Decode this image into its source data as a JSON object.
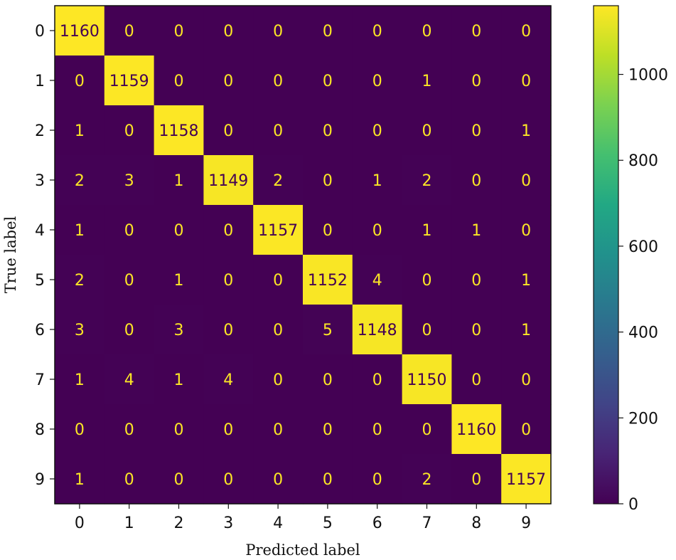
{
  "chart_data": {
    "type": "heatmap",
    "title": "",
    "xlabel": "Predicted label",
    "ylabel": "True label",
    "x_categories": [
      "0",
      "1",
      "2",
      "3",
      "4",
      "5",
      "6",
      "7",
      "8",
      "9"
    ],
    "y_categories": [
      "0",
      "1",
      "2",
      "3",
      "4",
      "5",
      "6",
      "7",
      "8",
      "9"
    ],
    "matrix": [
      [
        1160,
        0,
        0,
        0,
        0,
        0,
        0,
        0,
        0,
        0
      ],
      [
        0,
        1159,
        0,
        0,
        0,
        0,
        0,
        1,
        0,
        0
      ],
      [
        1,
        0,
        1158,
        0,
        0,
        0,
        0,
        0,
        0,
        1
      ],
      [
        2,
        3,
        1,
        1149,
        2,
        0,
        1,
        2,
        0,
        0
      ],
      [
        1,
        0,
        0,
        0,
        1157,
        0,
        0,
        1,
        1,
        0
      ],
      [
        2,
        0,
        1,
        0,
        0,
        1152,
        4,
        0,
        0,
        1
      ],
      [
        3,
        0,
        3,
        0,
        0,
        5,
        1148,
        0,
        0,
        1
      ],
      [
        1,
        4,
        1,
        4,
        0,
        0,
        0,
        1150,
        0,
        0
      ],
      [
        0,
        0,
        0,
        0,
        0,
        0,
        0,
        0,
        1160,
        0
      ],
      [
        1,
        0,
        0,
        0,
        0,
        0,
        0,
        2,
        0,
        1157
      ]
    ],
    "colormap": "viridis",
    "color_range": [
      0,
      1160
    ],
    "colorbar_ticks": [
      0,
      200,
      400,
      600,
      800,
      1000
    ],
    "colors": {
      "low": "#440154",
      "high": "#fde725",
      "text_on_low": "#fde725",
      "text_on_high": "#440154"
    }
  }
}
